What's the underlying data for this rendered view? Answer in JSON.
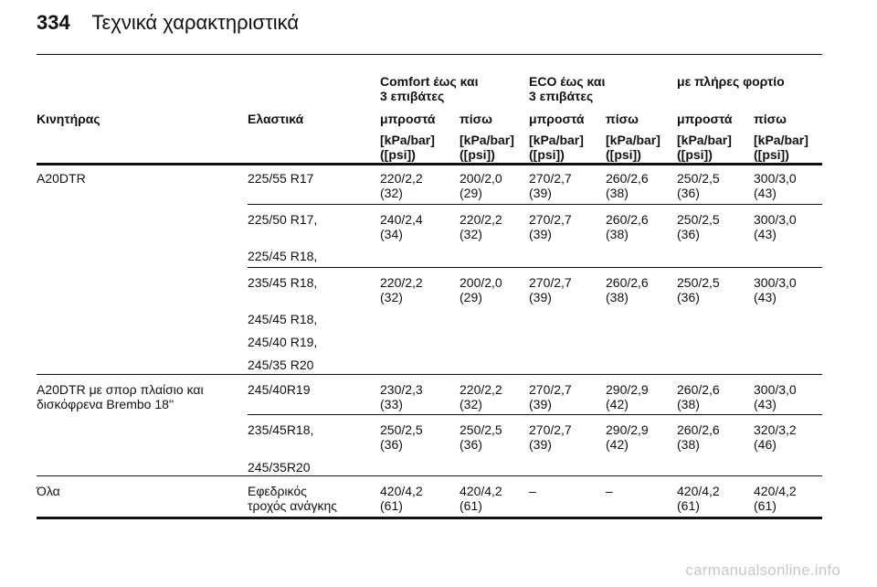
{
  "header": {
    "page_number": "334",
    "title": "Τεχνικά χαρακτηριστικά"
  },
  "groups": [
    {
      "line1": "Comfort έως και",
      "line2": "3 επιβάτες"
    },
    {
      "line1": "ECO έως και",
      "line2": "3 επιβάτες"
    },
    {
      "line1": "με πλήρες φορτίο",
      "line2": ""
    }
  ],
  "columns": {
    "engine": "Κινητήρας",
    "tires": "Ελαστικά",
    "positions": [
      "μπροστά",
      "πίσω",
      "μπροστά",
      "πίσω",
      "μπροστά",
      "πίσω"
    ],
    "unit_line1": "[kPa/bar]",
    "unit_line2": "([psi])"
  },
  "sections": [
    {
      "engine_line1": "A20DTR",
      "engine_line2": "",
      "rows": [
        {
          "tires": [
            "225/55 R17"
          ],
          "values": [
            [
              "220/2,2",
              "(32)"
            ],
            [
              "200/2,0",
              "(29)"
            ],
            [
              "270/2,7",
              "(39)"
            ],
            [
              "260/2,6",
              "(38)"
            ],
            [
              "250/2,5",
              "(36)"
            ],
            [
              "300/3,0",
              "(43)"
            ]
          ]
        },
        {
          "tires": [
            "225/50 R17,",
            "225/45 R18,"
          ],
          "values": [
            [
              "240/2,4",
              "(34)"
            ],
            [
              "220/2,2",
              "(32)"
            ],
            [
              "270/2,7",
              "(39)"
            ],
            [
              "260/2,6",
              "(38)"
            ],
            [
              "250/2,5",
              "(36)"
            ],
            [
              "300/3,0",
              "(43)"
            ]
          ]
        },
        {
          "tires": [
            "235/45 R18,",
            "245/45 R18,",
            "245/40 R19,",
            "245/35 R20"
          ],
          "values": [
            [
              "220/2,2",
              "(32)"
            ],
            [
              "200/2,0",
              "(29)"
            ],
            [
              "270/2,7",
              "(39)"
            ],
            [
              "260/2,6",
              "(38)"
            ],
            [
              "250/2,5",
              "(36)"
            ],
            [
              "300/3,0",
              "(43)"
            ]
          ]
        }
      ]
    },
    {
      "engine_line1": "A20DTR με σπορ πλαίσιο και",
      "engine_line2": "δισκόφρενα Brembo 18''",
      "rows": [
        {
          "tires": [
            "245/40R19"
          ],
          "values": [
            [
              "230/2,3",
              "(33)"
            ],
            [
              "220/2,2",
              "(32)"
            ],
            [
              "270/2,7",
              "(39)"
            ],
            [
              "290/2,9",
              "(42)"
            ],
            [
              "260/2,6",
              "(38)"
            ],
            [
              "300/3,0",
              "(43)"
            ]
          ]
        },
        {
          "tires": [
            "235/45R18,",
            "245/35R20"
          ],
          "values": [
            [
              "250/2,5",
              "(36)"
            ],
            [
              "250/2,5",
              "(36)"
            ],
            [
              "270/2,7",
              "(39)"
            ],
            [
              "290/2,9",
              "(42)"
            ],
            [
              "260/2,6",
              "(38)"
            ],
            [
              "320/3,2",
              "(46)"
            ]
          ]
        }
      ]
    },
    {
      "engine_line1": "Όλα",
      "engine_line2": "",
      "rows": [
        {
          "tires": [
            "Εφεδρικός",
            "τροχός ανάγκης"
          ],
          "values": [
            [
              "420/4,2",
              "(61)"
            ],
            [
              "420/4,2",
              "(61)"
            ],
            [
              "–",
              ""
            ],
            [
              "–",
              ""
            ],
            [
              "420/4,2",
              "(61)"
            ],
            [
              "420/4,2",
              "(61)"
            ]
          ]
        }
      ]
    }
  ],
  "watermark": "carmanualsonline.info"
}
